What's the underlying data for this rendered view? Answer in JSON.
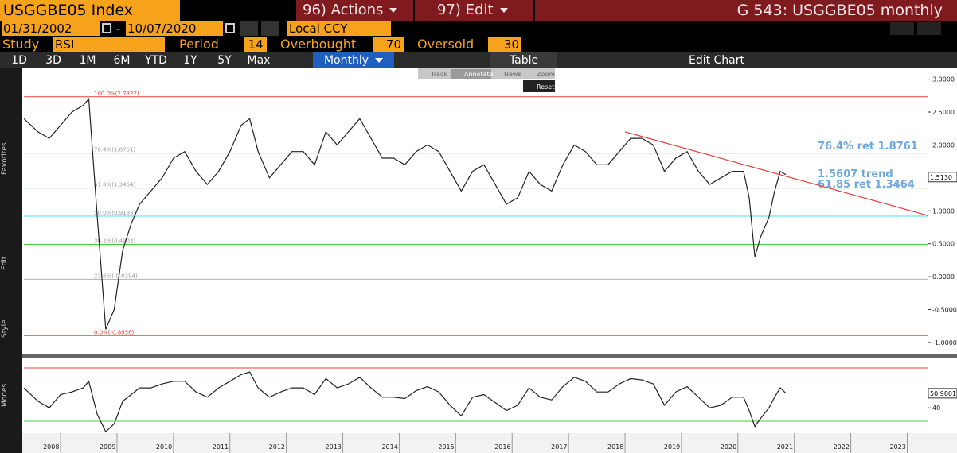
{
  "header": {
    "ticker": "USGGBE05 Index",
    "actions_num": "96)",
    "actions": "Actions",
    "edit_num": "97)",
    "edit": "Edit",
    "title": "G 543: USGGBE05 monthly"
  },
  "dates": {
    "start": "01/31/2002",
    "sep": "-",
    "end": "10/07/2020",
    "currency": "Local CCY"
  },
  "study": {
    "label": "Study",
    "name": "RSI",
    "period_label": "Period",
    "period": 14,
    "overbought_label": "Overbought",
    "overbought": 70,
    "oversold_label": "Oversold",
    "oversold": 30
  },
  "toolbar": {
    "ranges": [
      "1D",
      "3D",
      "1M",
      "6M",
      "YTD",
      "1Y",
      "5Y",
      "Max"
    ],
    "frequency": "Monthly",
    "table": "Table",
    "edit_chart": "Edit Chart"
  },
  "chart_tools": {
    "items": [
      "Track",
      "Annotate",
      "News",
      "Zoom"
    ],
    "reset": "Reset"
  },
  "side_labels": [
    "Favorites",
    "Edit",
    "Style",
    "Modes"
  ],
  "annotations": [
    "76.4% ret 1.8761",
    "1.5607 trend",
    "61.85 ret 1.3464"
  ],
  "chart_data": [
    {
      "type": "line",
      "color": "#222222",
      "x": [
        2007.35,
        2007.6,
        2007.8,
        2008.0,
        2008.2,
        2008.4,
        2008.5,
        2008.65,
        2008.8,
        2008.95,
        2009.1,
        2009.25,
        2009.4,
        2009.6,
        2009.8,
        2010.0,
        2010.2,
        2010.4,
        2010.6,
        2010.8,
        2011.0,
        2011.2,
        2011.35,
        2011.5,
        2011.7,
        2011.9,
        2012.1,
        2012.3,
        2012.5,
        2012.7,
        2012.9,
        2013.1,
        2013.3,
        2013.5,
        2013.7,
        2013.9,
        2014.1,
        2014.3,
        2014.5,
        2014.7,
        2014.9,
        2015.1,
        2015.3,
        2015.5,
        2015.7,
        2015.9,
        2016.1,
        2016.3,
        2016.5,
        2016.7,
        2016.9,
        2017.1,
        2017.3,
        2017.5,
        2017.7,
        2017.9,
        2018.1,
        2018.3,
        2018.5,
        2018.7,
        2018.9,
        2019.1,
        2019.3,
        2019.5,
        2019.7,
        2019.9,
        2020.1,
        2020.2,
        2020.3,
        2020.4,
        2020.55,
        2020.65,
        2020.75,
        2020.85
      ],
      "values": [
        2.4,
        2.2,
        2.1,
        2.3,
        2.5,
        2.6,
        2.7,
        0.9,
        -0.8,
        -0.5,
        0.4,
        0.8,
        1.1,
        1.3,
        1.5,
        1.8,
        1.9,
        1.6,
        1.4,
        1.6,
        1.9,
        2.3,
        2.4,
        1.9,
        1.5,
        1.7,
        1.9,
        1.9,
        1.7,
        2.2,
        2.0,
        2.2,
        2.4,
        2.1,
        1.8,
        1.8,
        1.7,
        1.9,
        2.0,
        1.9,
        1.6,
        1.3,
        1.6,
        1.7,
        1.4,
        1.1,
        1.2,
        1.6,
        1.4,
        1.3,
        1.7,
        2.0,
        1.9,
        1.7,
        1.7,
        1.9,
        2.1,
        2.1,
        2.0,
        1.6,
        1.8,
        1.9,
        1.6,
        1.4,
        1.5,
        1.6,
        1.6,
        1.2,
        0.3,
        0.6,
        0.9,
        1.3,
        1.6,
        1.55
      ],
      "xlim": [
        2007.35,
        2023.36
      ],
      "xticks": [
        2008,
        2009,
        2010,
        2011,
        2012,
        2013,
        2014,
        2015,
        2016,
        2017,
        2018,
        2019,
        2020,
        2021,
        2022,
        2023
      ],
      "ylim": [
        -1.17,
        3.14
      ],
      "yticks": [
        {
          "value": 3,
          "label": "3.0000"
        },
        {
          "value": 2.5,
          "label": "2.5000"
        },
        {
          "value": 2,
          "label": "2.0000"
        },
        {
          "value": 1.5,
          "label": "1.5000"
        },
        {
          "value": 1,
          "label": "1.0000"
        },
        {
          "value": 0.5,
          "label": "0.5000"
        },
        {
          "value": 0,
          "label": "0.0000"
        },
        {
          "value": -0.5,
          "label": "-0.5000"
        },
        {
          "value": -1,
          "label": "-1.0000"
        }
      ],
      "levels": [
        {
          "value": 2.7322,
          "label": "100.0%(2.7322)",
          "color": "#e8413c"
        },
        {
          "value": 1.8761,
          "label": "76.4%(1.8761)",
          "color": "#b0b0b0"
        },
        {
          "value": 1.3464,
          "label": "61.8%(1.3464)",
          "color": "#3fd13f"
        },
        {
          "value": 0.9183,
          "label": "50.0%(0.9183)",
          "color": "#40dff0"
        },
        {
          "value": 0.4902,
          "label": "38.2%(0.4902)",
          "color": "#3fd13f"
        },
        {
          "value": -0.0394,
          "label": "23.6%(-0.0394)",
          "color": "#b0b0b0"
        },
        {
          "value": -0.8956,
          "label": "0.0%(-0.8956)",
          "color": "#e8413c"
        }
      ],
      "trendline": {
        "x": [
          2018.0,
          2023.36
        ],
        "values": [
          2.2,
          0.93
        ],
        "color": "#e8413c"
      },
      "last_value": {
        "value": 1.513,
        "label": "1.5130"
      }
    },
    {
      "type": "line",
      "color": "#222222",
      "x": [
        2007.35,
        2007.6,
        2007.8,
        2008.0,
        2008.2,
        2008.4,
        2008.5,
        2008.65,
        2008.8,
        2008.95,
        2009.1,
        2009.25,
        2009.4,
        2009.6,
        2009.8,
        2010.0,
        2010.2,
        2010.4,
        2010.6,
        2010.8,
        2011.0,
        2011.2,
        2011.35,
        2011.5,
        2011.7,
        2011.9,
        2012.1,
        2012.3,
        2012.5,
        2012.7,
        2012.9,
        2013.1,
        2013.3,
        2013.5,
        2013.7,
        2013.9,
        2014.1,
        2014.3,
        2014.5,
        2014.7,
        2014.9,
        2015.1,
        2015.3,
        2015.5,
        2015.7,
        2015.9,
        2016.1,
        2016.3,
        2016.5,
        2016.7,
        2016.9,
        2017.1,
        2017.3,
        2017.5,
        2017.7,
        2017.9,
        2018.1,
        2018.3,
        2018.5,
        2018.7,
        2018.9,
        2019.1,
        2019.3,
        2019.5,
        2019.7,
        2019.9,
        2020.1,
        2020.2,
        2020.3,
        2020.4,
        2020.55,
        2020.65,
        2020.75,
        2020.85
      ],
      "values": [
        55,
        45,
        40,
        50,
        52,
        55,
        60,
        35,
        22,
        28,
        45,
        50,
        55,
        55,
        58,
        60,
        60,
        52,
        48,
        55,
        60,
        65,
        67,
        55,
        48,
        52,
        55,
        55,
        50,
        62,
        55,
        58,
        63,
        55,
        48,
        48,
        47,
        53,
        56,
        52,
        42,
        34,
        48,
        50,
        44,
        38,
        42,
        55,
        48,
        46,
        56,
        63,
        60,
        52,
        52,
        58,
        62,
        61,
        58,
        42,
        52,
        56,
        48,
        40,
        42,
        48,
        48,
        38,
        26,
        32,
        40,
        48,
        55,
        51
      ],
      "xlim": [
        2007.35,
        2023.36
      ],
      "ylim": [
        21,
        77.8
      ],
      "yticks": [
        40
      ],
      "last_value": {
        "value": 50.9801,
        "label": "50.9801"
      }
    }
  ]
}
